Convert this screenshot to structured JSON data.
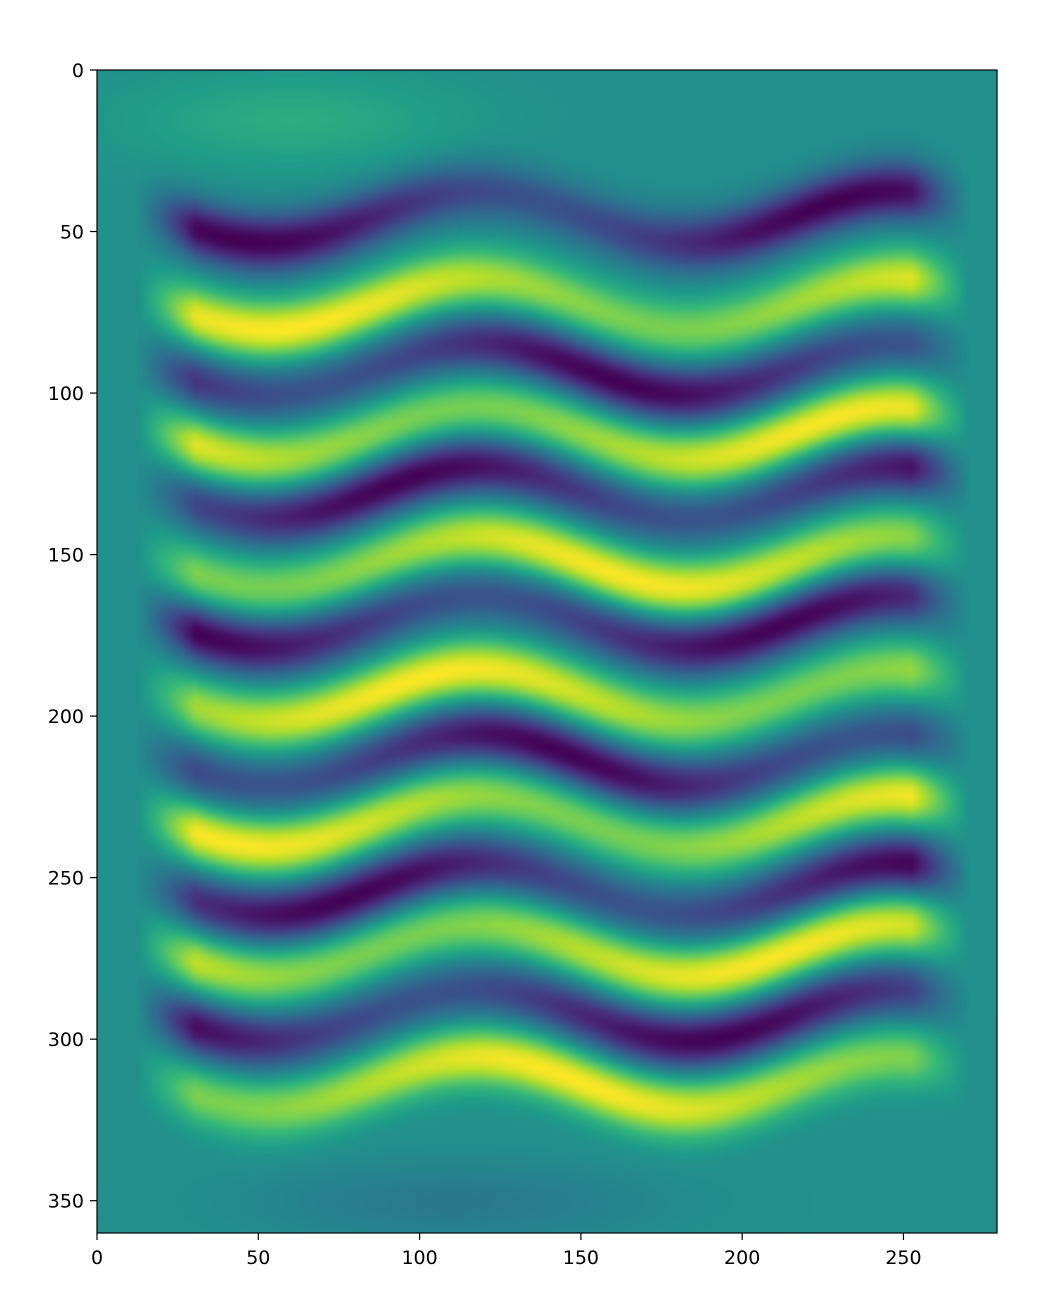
{
  "chart_data": {
    "type": "heatmap",
    "title": "",
    "xlabel": "",
    "ylabel": "",
    "colormap": "viridis",
    "xlim": [
      0,
      279
    ],
    "ylim": [
      360,
      0
    ],
    "x_ticks": [
      0,
      50,
      100,
      150,
      200,
      250
    ],
    "y_ticks": [
      0,
      50,
      100,
      150,
      200,
      250,
      300,
      350
    ],
    "x_tick_labels": [
      "0",
      "50",
      "100",
      "150",
      "200",
      "250"
    ],
    "y_tick_labels": [
      "0",
      "50",
      "100",
      "150",
      "200",
      "250",
      "300",
      "350"
    ],
    "colorbar": false,
    "grid": false,
    "pattern": {
      "description_of_values": "horizontal sinusoidal bands alternating bright (yellow) and dark (purple), wavy along x",
      "bright_band_rows": [
        72,
        112,
        152,
        193,
        232,
        272,
        313
      ],
      "dark_band_rows": [
        45,
        92,
        130,
        170,
        213,
        253,
        292
      ],
      "band_x_extent": [
        20,
        262
      ],
      "wave_period_x": 130,
      "wave_amplitude_y": 8,
      "background_level": 0.5
    }
  }
}
